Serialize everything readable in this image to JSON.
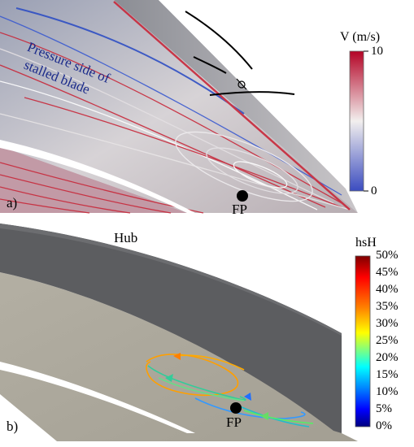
{
  "panel_a": {
    "label": "a)",
    "annotation_line1": "Pressure side of",
    "annotation_line2": "stalled blade",
    "focal_point": "FP",
    "colorbar": {
      "title": "V (m/s)",
      "max_label": "10",
      "min_label": "0",
      "colors": [
        "#b40426",
        "#f7f7f7",
        "#3b4cc0"
      ]
    }
  },
  "panel_b": {
    "label": "b)",
    "hub_label": "Hub",
    "focal_point": "FP",
    "colorbar": {
      "title": "hsH",
      "ticks": [
        "50%",
        "45%",
        "40%",
        "35%",
        "30%",
        "25%",
        "20%",
        "15%",
        "10%",
        "5%",
        "0%"
      ],
      "colors": [
        "#7f0000",
        "#ff0000",
        "#ff7f00",
        "#ffff00",
        "#7fff7f",
        "#00ffff",
        "#007fff",
        "#0000ff",
        "#00007f"
      ]
    }
  },
  "colors": {
    "surface": "#a8a59a",
    "blade_dark": "#5c5d60",
    "streak_red": "#c8283a",
    "streak_blue": "#3b5bd0"
  }
}
